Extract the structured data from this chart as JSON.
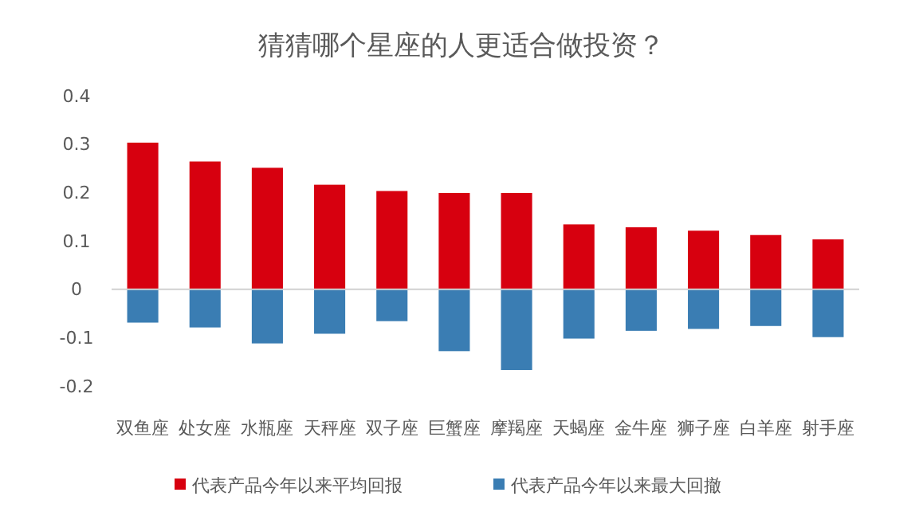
{
  "chart_data": {
    "type": "bar",
    "title": "猜猜哪个星座的人更适合做投资？",
    "categories": [
      "双鱼座",
      "处女座",
      "水瓶座",
      "天秤座",
      "双子座",
      "巨蟹座",
      "摩羯座",
      "天蝎座",
      "金牛座",
      "狮子座",
      "白羊座",
      "射手座"
    ],
    "series": [
      {
        "name": "代表产品今年以来平均回报",
        "color": "#d7000f",
        "values": [
          0.303,
          0.264,
          0.251,
          0.216,
          0.203,
          0.199,
          0.199,
          0.134,
          0.128,
          0.121,
          0.112,
          0.103
        ]
      },
      {
        "name": "代表产品今年以来最大回撤",
        "color": "#3a7db3",
        "values": [
          -0.069,
          -0.079,
          -0.112,
          -0.092,
          -0.066,
          -0.128,
          -0.167,
          -0.102,
          -0.086,
          -0.082,
          -0.076,
          -0.099
        ]
      }
    ],
    "stacked": true,
    "ylim": [
      -0.2,
      0.4
    ],
    "yticks": [
      -0.2,
      -0.1,
      0,
      0.1,
      0.2,
      0.3,
      0.4
    ],
    "legend": "bottom"
  }
}
